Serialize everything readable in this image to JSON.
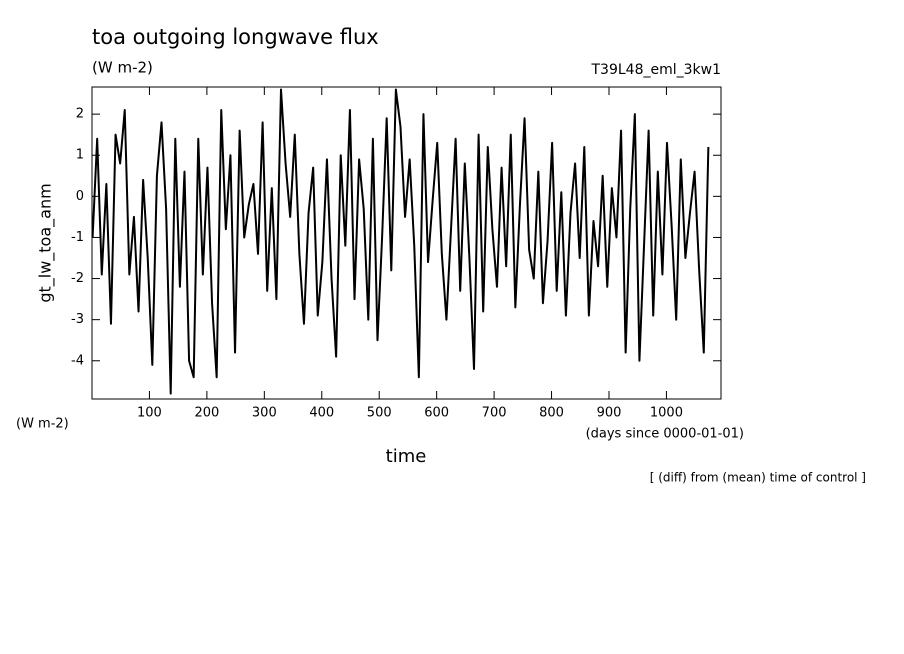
{
  "chart_data": {
    "type": "line",
    "title": "toa outgoing longwave flux",
    "subtitle": "(W m-2)",
    "annotation": "T39L48_eml_3kw1",
    "y_label": "gt_lw_toa_anm",
    "y_unit": "(W m-2)",
    "x_label": "time",
    "x_unit": "(days since 0000-01-01)",
    "footnote": "[ (diff) from (mean) time of control ]",
    "xlim": [
      0,
      1095
    ],
    "ylim": [
      -4.93,
      2.66
    ],
    "xticks": [
      100,
      200,
      300,
      400,
      500,
      600,
      700,
      800,
      900,
      1000
    ],
    "yticks": [
      -4,
      -3,
      -2,
      -1,
      0,
      1,
      2
    ],
    "series": [
      {
        "color": "#000000",
        "x": [
          1,
          9,
          17,
          25,
          33,
          41,
          49,
          57,
          65,
          73,
          81,
          89,
          97,
          105,
          113,
          121,
          129,
          137,
          145,
          153,
          161,
          169,
          177,
          185,
          193,
          201,
          209,
          217,
          225,
          233,
          241,
          249,
          257,
          265,
          273,
          281,
          289,
          297,
          305,
          313,
          321,
          329,
          337,
          345,
          353,
          361,
          369,
          377,
          385,
          393,
          401,
          409,
          417,
          425,
          433,
          441,
          449,
          457,
          465,
          473,
          481,
          489,
          497,
          505,
          513,
          521,
          529,
          537,
          545,
          553,
          561,
          569,
          577,
          585,
          593,
          601,
          609,
          617,
          625,
          633,
          641,
          649,
          657,
          665,
          673,
          681,
          689,
          697,
          705,
          713,
          721,
          729,
          737,
          745,
          753,
          761,
          769,
          777,
          785,
          793,
          801,
          809,
          817,
          825,
          833,
          841,
          849,
          857,
          865,
          873,
          881,
          889,
          897,
          905,
          913,
          921,
          929,
          937,
          945,
          953,
          961,
          969,
          977,
          985,
          993,
          1001,
          1009,
          1017,
          1025,
          1033,
          1041,
          1049,
          1057,
          1065,
          1073
        ],
        "values": [
          -1.0,
          1.4,
          -1.9,
          0.3,
          -3.1,
          1.5,
          0.8,
          2.1,
          -1.9,
          -0.5,
          -2.8,
          0.4,
          -1.5,
          -4.1,
          0.5,
          1.8,
          -0.3,
          -4.8,
          1.4,
          -2.2,
          0.6,
          -4.0,
          -4.4,
          1.4,
          -1.9,
          0.7,
          -2.6,
          -4.4,
          2.1,
          -0.8,
          1.0,
          -3.8,
          1.6,
          -1.0,
          -0.2,
          0.3,
          -1.4,
          1.8,
          -2.3,
          0.2,
          -2.5,
          2.6,
          0.8,
          -0.5,
          1.5,
          -1.4,
          -3.1,
          -0.4,
          0.7,
          -2.9,
          -1.6,
          0.9,
          -2.0,
          -3.9,
          1.0,
          -1.2,
          2.1,
          -2.5,
          0.9,
          -0.3,
          -3.0,
          1.4,
          -3.5,
          -1.0,
          1.9,
          -1.8,
          2.6,
          1.7,
          -0.5,
          0.9,
          -1.2,
          -4.4,
          2.0,
          -1.6,
          -0.1,
          1.3,
          -1.4,
          -3.0,
          -0.8,
          1.4,
          -2.3,
          0.8,
          -1.5,
          -4.2,
          1.5,
          -2.8,
          1.2,
          -0.8,
          -2.2,
          0.7,
          -1.7,
          1.5,
          -2.7,
          -0.2,
          1.9,
          -1.3,
          -2.0,
          0.6,
          -2.6,
          -1.1,
          1.3,
          -2.3,
          0.1,
          -2.9,
          -0.4,
          0.8,
          -1.5,
          1.2,
          -2.9,
          -0.6,
          -1.7,
          0.5,
          -2.2,
          0.2,
          -1.0,
          1.6,
          -3.8,
          -0.3,
          2.0,
          -4.0,
          -1.2,
          1.6,
          -2.9,
          0.6,
          -1.9,
          1.3,
          -0.7,
          -3.0,
          0.9,
          -1.5,
          -0.4,
          0.6,
          -1.8,
          -3.8,
          1.2
        ]
      }
    ]
  }
}
